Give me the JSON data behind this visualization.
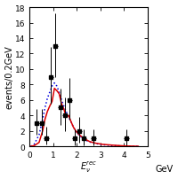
{
  "title": "",
  "xlabel": "$E_{\\nu}^{rec}$",
  "ylabel": "events/0.2GeV",
  "xlim": [
    0,
    5
  ],
  "ylim": [
    0,
    18
  ],
  "yticks": [
    0,
    2,
    4,
    6,
    8,
    10,
    12,
    14,
    16,
    18
  ],
  "xticks": [
    0,
    1,
    2,
    3,
    4,
    5
  ],
  "gev_label": "GeV",
  "data_x": [
    0.3,
    0.5,
    0.7,
    0.9,
    1.1,
    1.3,
    1.5,
    1.7,
    1.9,
    2.1,
    2.3,
    2.7,
    4.1
  ],
  "data_y": [
    3.0,
    3.0,
    1.0,
    9.0,
    13.0,
    5.0,
    4.0,
    6.0,
    1.0,
    2.0,
    1.0,
    1.0,
    1.0
  ],
  "data_yerr_lo": [
    1.5,
    1.5,
    0.8,
    3.5,
    4.0,
    2.2,
    2.0,
    2.5,
    0.9,
    1.5,
    0.9,
    0.9,
    0.9
  ],
  "data_yerr_hi": [
    1.8,
    1.8,
    1.5,
    3.8,
    4.2,
    2.5,
    2.3,
    2.8,
    1.2,
    1.8,
    1.2,
    1.2,
    1.2
  ],
  "data_xerr": [
    0.1,
    0.1,
    0.1,
    0.1,
    0.1,
    0.1,
    0.1,
    0.1,
    0.1,
    0.1,
    0.1,
    0.1,
    0.1
  ],
  "red_x": [
    0.05,
    0.2,
    0.4,
    0.55,
    0.65,
    0.75,
    0.85,
    0.95,
    1.05,
    1.15,
    1.25,
    1.35,
    1.45,
    1.55,
    1.65,
    1.75,
    1.85,
    1.95,
    2.1,
    2.3,
    2.55,
    2.8,
    3.1,
    3.5,
    4.0,
    4.6
  ],
  "red_y": [
    0.0,
    0.1,
    0.5,
    2.0,
    3.5,
    4.5,
    5.2,
    5.8,
    7.5,
    7.2,
    6.8,
    5.5,
    4.8,
    3.8,
    4.0,
    3.2,
    2.5,
    2.0,
    1.5,
    1.0,
    0.6,
    0.4,
    0.25,
    0.15,
    0.05,
    0.0
  ],
  "blue_x": [
    0.05,
    0.2,
    0.4,
    0.55,
    0.65,
    0.75,
    0.85,
    0.95,
    1.05,
    1.15,
    1.25,
    1.35,
    1.45,
    1.55,
    1.65,
    1.75,
    1.85,
    1.95,
    2.1,
    2.3,
    2.55,
    2.8,
    3.1,
    3.5,
    4.0,
    4.6
  ],
  "blue_y": [
    0.0,
    0.3,
    1.5,
    3.5,
    5.0,
    6.2,
    7.0,
    7.8,
    8.2,
    7.8,
    7.0,
    6.0,
    5.2,
    4.5,
    3.8,
    3.2,
    2.5,
    2.0,
    1.4,
    0.9,
    0.55,
    0.35,
    0.2,
    0.1,
    0.03,
    0.0
  ],
  "red_color": "#dd0000",
  "blue_color": "#0000dd",
  "data_color": "black",
  "bg_color": "white",
  "fig_width": 2.0,
  "fig_height": 2.03,
  "dpi": 100
}
